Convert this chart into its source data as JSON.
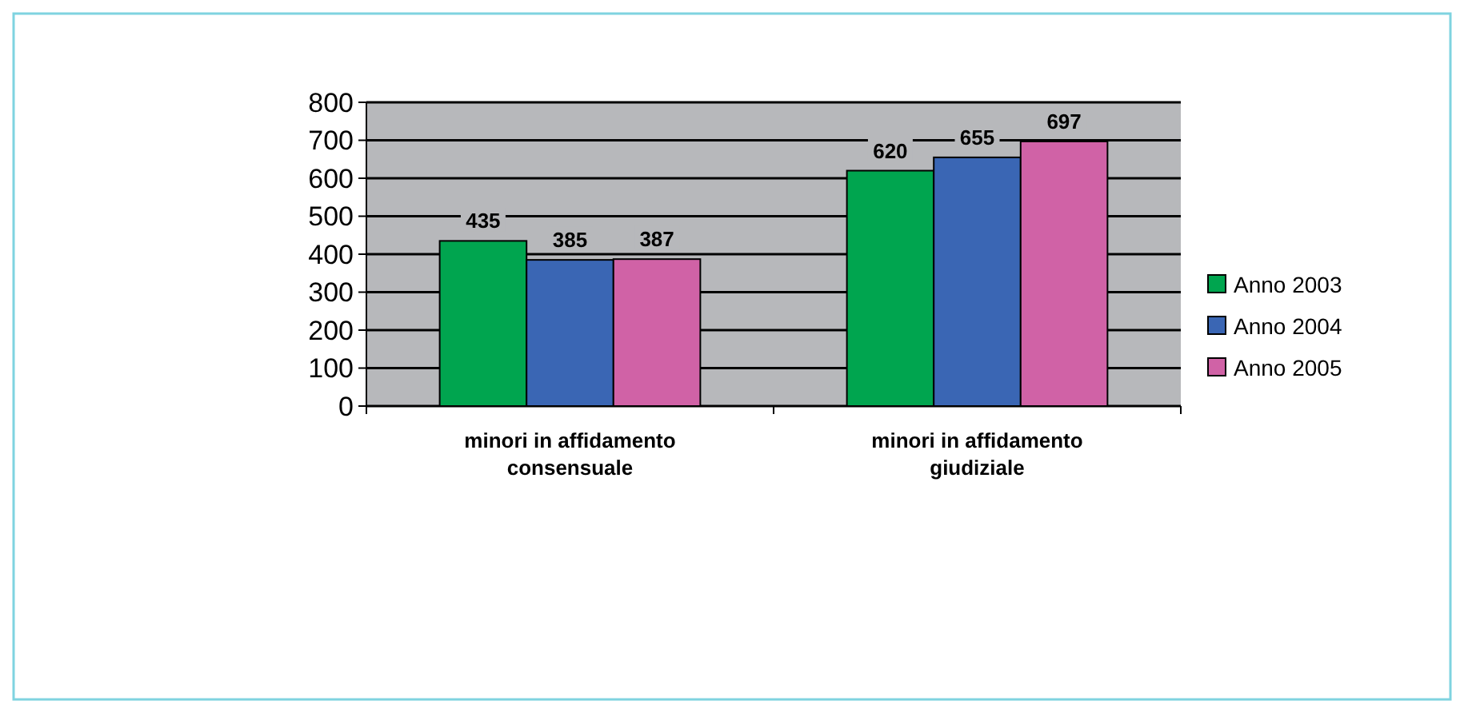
{
  "chart_data": {
    "type": "bar",
    "categories": [
      "minori in affidamento consensuale",
      "minori in affidamento giudiziale"
    ],
    "series": [
      {
        "name": "Anno 2003",
        "color": "#00a54f",
        "values": [
          435,
          620
        ]
      },
      {
        "name": "Anno 2004",
        "color": "#3a66b4",
        "values": [
          385,
          655
        ]
      },
      {
        "name": "Anno 2005",
        "color": "#d062a6",
        "values": [
          387,
          697
        ]
      }
    ],
    "ylim": [
      0,
      800
    ],
    "yticks": [
      0,
      100,
      200,
      300,
      400,
      500,
      600,
      700,
      800
    ],
    "grid": "y",
    "legend": "right",
    "data_labels": true
  }
}
